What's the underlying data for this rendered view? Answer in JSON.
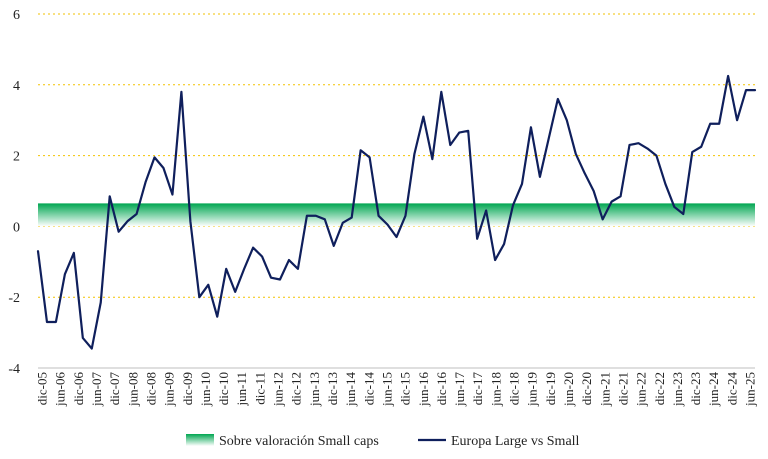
{
  "chart_data": {
    "type": "line",
    "title": "",
    "xlabel": "",
    "ylabel": "",
    "ylim": [
      -4,
      6
    ],
    "yticks": [
      -4,
      -2,
      0,
      2,
      4,
      6
    ],
    "grid": "horizontal dotted",
    "legend_position": "bottom",
    "x_labels": [
      "dic-05",
      "jun-06",
      "dic-06",
      "jun-07",
      "dic-07",
      "jun-08",
      "dic-08",
      "jun-09",
      "dic-09",
      "jun-10",
      "dic-10",
      "jun-11",
      "dic-11",
      "jun-12",
      "dic-12",
      "jun-13",
      "dic-13",
      "jun-14",
      "dic-14",
      "jun-15",
      "dic-15",
      "jun-16",
      "dic-16",
      "jun-17",
      "dic-17",
      "jun-18",
      "dic-18",
      "jun-19",
      "dic-19",
      "jun-20",
      "dic-20",
      "jun-21",
      "dic-21",
      "jun-22",
      "dic-22",
      "jun-23",
      "dic-23",
      "jun-24",
      "dic-24",
      "jun-25"
    ],
    "band": {
      "name": "Sobre valoración Small caps",
      "from": 0,
      "to": 0.65,
      "color_top": "#00a651",
      "color_bottom": "#ffffff"
    },
    "series": [
      {
        "name": "Europa Large vs Small",
        "color": "#0f1f5c",
        "x": [
          0,
          1,
          2,
          3,
          4,
          5,
          6,
          7,
          8,
          9,
          10,
          11,
          12,
          13,
          14,
          15,
          16,
          17,
          18,
          19,
          20,
          21,
          22,
          23,
          24,
          25,
          26,
          27,
          28,
          29,
          30,
          31,
          32,
          33,
          34,
          35,
          36,
          37,
          38,
          39,
          40,
          41,
          42,
          43,
          44,
          45,
          46,
          47,
          48,
          49,
          50,
          51,
          52,
          53,
          54,
          55,
          56,
          57,
          58,
          59,
          60,
          61,
          62,
          63,
          64,
          65,
          66,
          67,
          68,
          69,
          70,
          71,
          72,
          73,
          74,
          75,
          76,
          77,
          78,
          79,
          80
        ],
        "values": [
          -0.7,
          -2.7,
          -2.7,
          -1.35,
          -0.75,
          -3.15,
          -3.45,
          -2.15,
          0.85,
          -0.15,
          0.15,
          0.35,
          1.25,
          1.95,
          1.65,
          0.9,
          3.8,
          0.15,
          -2.0,
          -1.65,
          -2.55,
          -1.2,
          -1.85,
          -1.2,
          -0.6,
          -0.85,
          -1.45,
          -1.5,
          -0.95,
          -1.2,
          0.3,
          0.3,
          0.2,
          -0.55,
          0.1,
          0.25,
          2.15,
          1.95,
          0.3,
          0.05,
          -0.3,
          0.3,
          2.05,
          3.1,
          1.9,
          3.8,
          2.3,
          2.65,
          2.7,
          -0.35,
          0.45,
          -0.95,
          -0.5,
          0.6,
          1.2,
          2.8,
          1.4,
          2.5,
          3.6,
          3.0,
          2.05,
          1.5,
          1.0,
          0.2,
          0.7,
          0.85,
          2.3,
          2.35,
          2.2,
          2.0,
          1.2,
          0.55,
          0.35,
          2.1,
          2.25,
          2.9,
          2.9,
          4.25,
          3.0,
          3.85,
          3.85
        ]
      }
    ]
  }
}
